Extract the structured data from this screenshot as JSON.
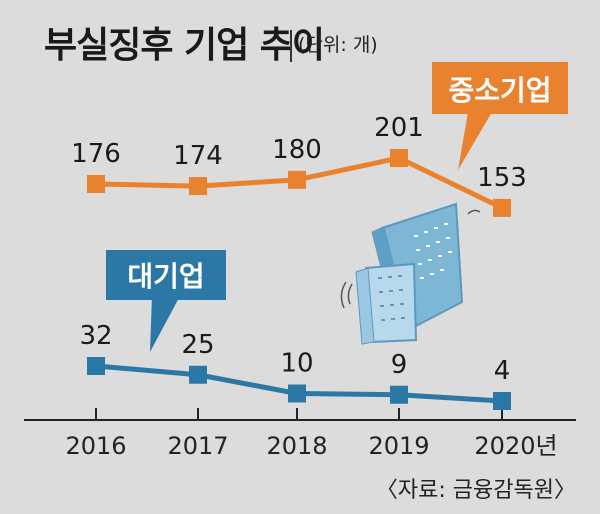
{
  "title": "부실징후 기업 추이",
  "unit": "(단위: 개)",
  "source": "〈자료: 금융감독원〉",
  "chart_data": {
    "type": "line",
    "categories": [
      "2016",
      "2017",
      "2018",
      "2019",
      "2020년"
    ],
    "series": [
      {
        "name": "중소기업",
        "values": [
          176,
          174,
          180,
          201,
          153
        ],
        "color": "#e8822f"
      },
      {
        "name": "대기업",
        "values": [
          32,
          25,
          10,
          9,
          4
        ],
        "color": "#2b78a6"
      }
    ],
    "grid": false,
    "legend": "callouts"
  }
}
